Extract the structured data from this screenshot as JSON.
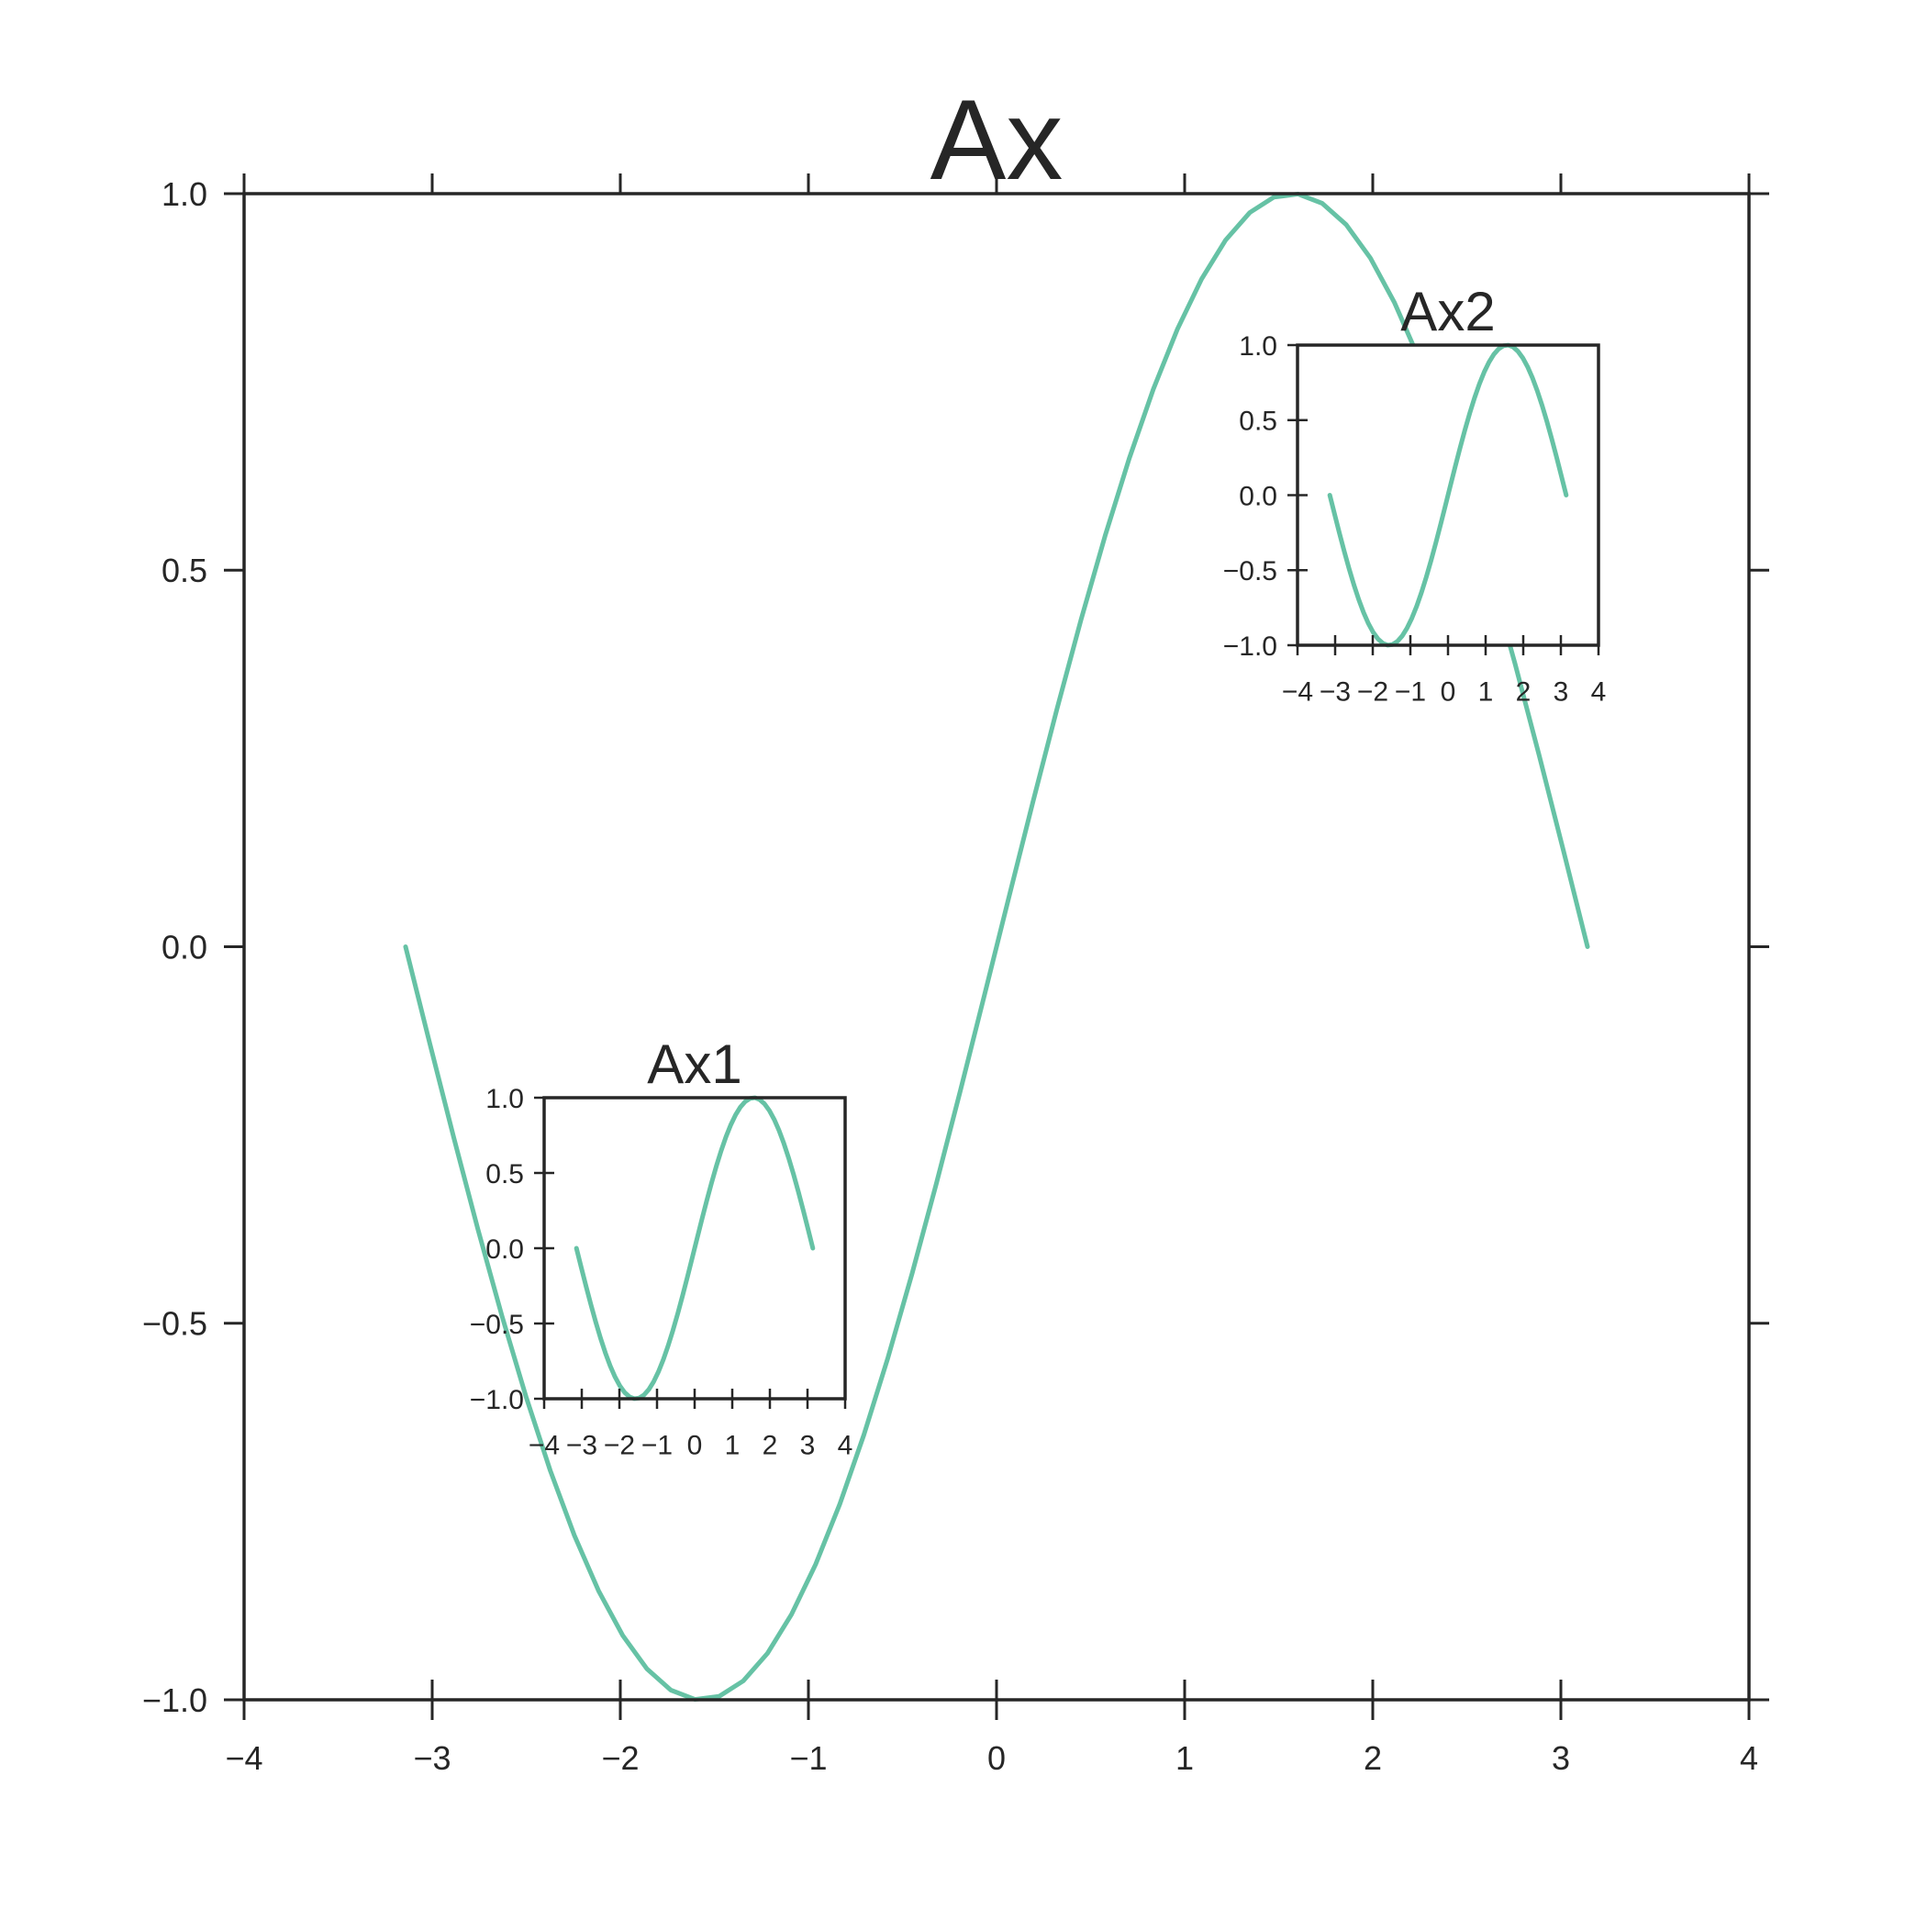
{
  "colors": {
    "line": "#66c2a5",
    "axes": "#262626",
    "background": "#ffffff"
  },
  "chart_data": [
    {
      "type": "line",
      "title": "Ax",
      "xlabel": "",
      "ylabel": "",
      "xlim": [
        -4,
        4
      ],
      "ylim": [
        -1,
        1
      ],
      "xticks": [
        -4,
        -3,
        -2,
        -1,
        0,
        1,
        2,
        3,
        4
      ],
      "xtick_labels": [
        "−4",
        "−3",
        "−2",
        "−1",
        "0",
        "1",
        "2",
        "3",
        "4"
      ],
      "yticks": [
        -1,
        -0.5,
        0,
        0.5,
        1
      ],
      "ytick_labels": [
        "−1.0",
        "−0.5",
        "0.0",
        "0.5",
        "1.0"
      ],
      "grid": false,
      "function": "sin(x)",
      "x_range": [
        -3.14159,
        3.14159
      ],
      "sample_count": 50
    },
    {
      "type": "line",
      "title": "Ax1",
      "xlabel": "",
      "ylabel": "",
      "xlim": [
        -4,
        4
      ],
      "ylim": [
        -1,
        1
      ],
      "xticks": [
        -4,
        -3,
        -2,
        -1,
        0,
        1,
        2,
        3,
        4
      ],
      "xtick_labels": [
        "−4",
        "−3",
        "−2",
        "−1",
        "0",
        "1",
        "2",
        "3",
        "4"
      ],
      "yticks": [
        -1,
        -0.5,
        0,
        0.5,
        1
      ],
      "ytick_labels": [
        "−1.0",
        "−0.5",
        "0.0",
        "0.5",
        "1.0"
      ],
      "grid": false,
      "function": "sin(x)",
      "x_range": [
        -3.14159,
        3.14159
      ],
      "sample_count": 50
    },
    {
      "type": "line",
      "title": "Ax2",
      "xlabel": "",
      "ylabel": "",
      "xlim": [
        -4,
        4
      ],
      "ylim": [
        -1,
        1
      ],
      "xticks": [
        -4,
        -3,
        -2,
        -1,
        0,
        1,
        2,
        3,
        4
      ],
      "xtick_labels": [
        "−4",
        "−3",
        "−2",
        "−1",
        "0",
        "1",
        "2",
        "3",
        "4"
      ],
      "yticks": [
        -1,
        -0.5,
        0,
        0.5,
        1
      ],
      "ytick_labels": [
        "−1.0",
        "−0.5",
        "0.0",
        "0.5",
        "1.0"
      ],
      "grid": false,
      "function": "sin(x)",
      "x_range": [
        -3.14159,
        3.14159
      ],
      "sample_count": 50
    }
  ]
}
